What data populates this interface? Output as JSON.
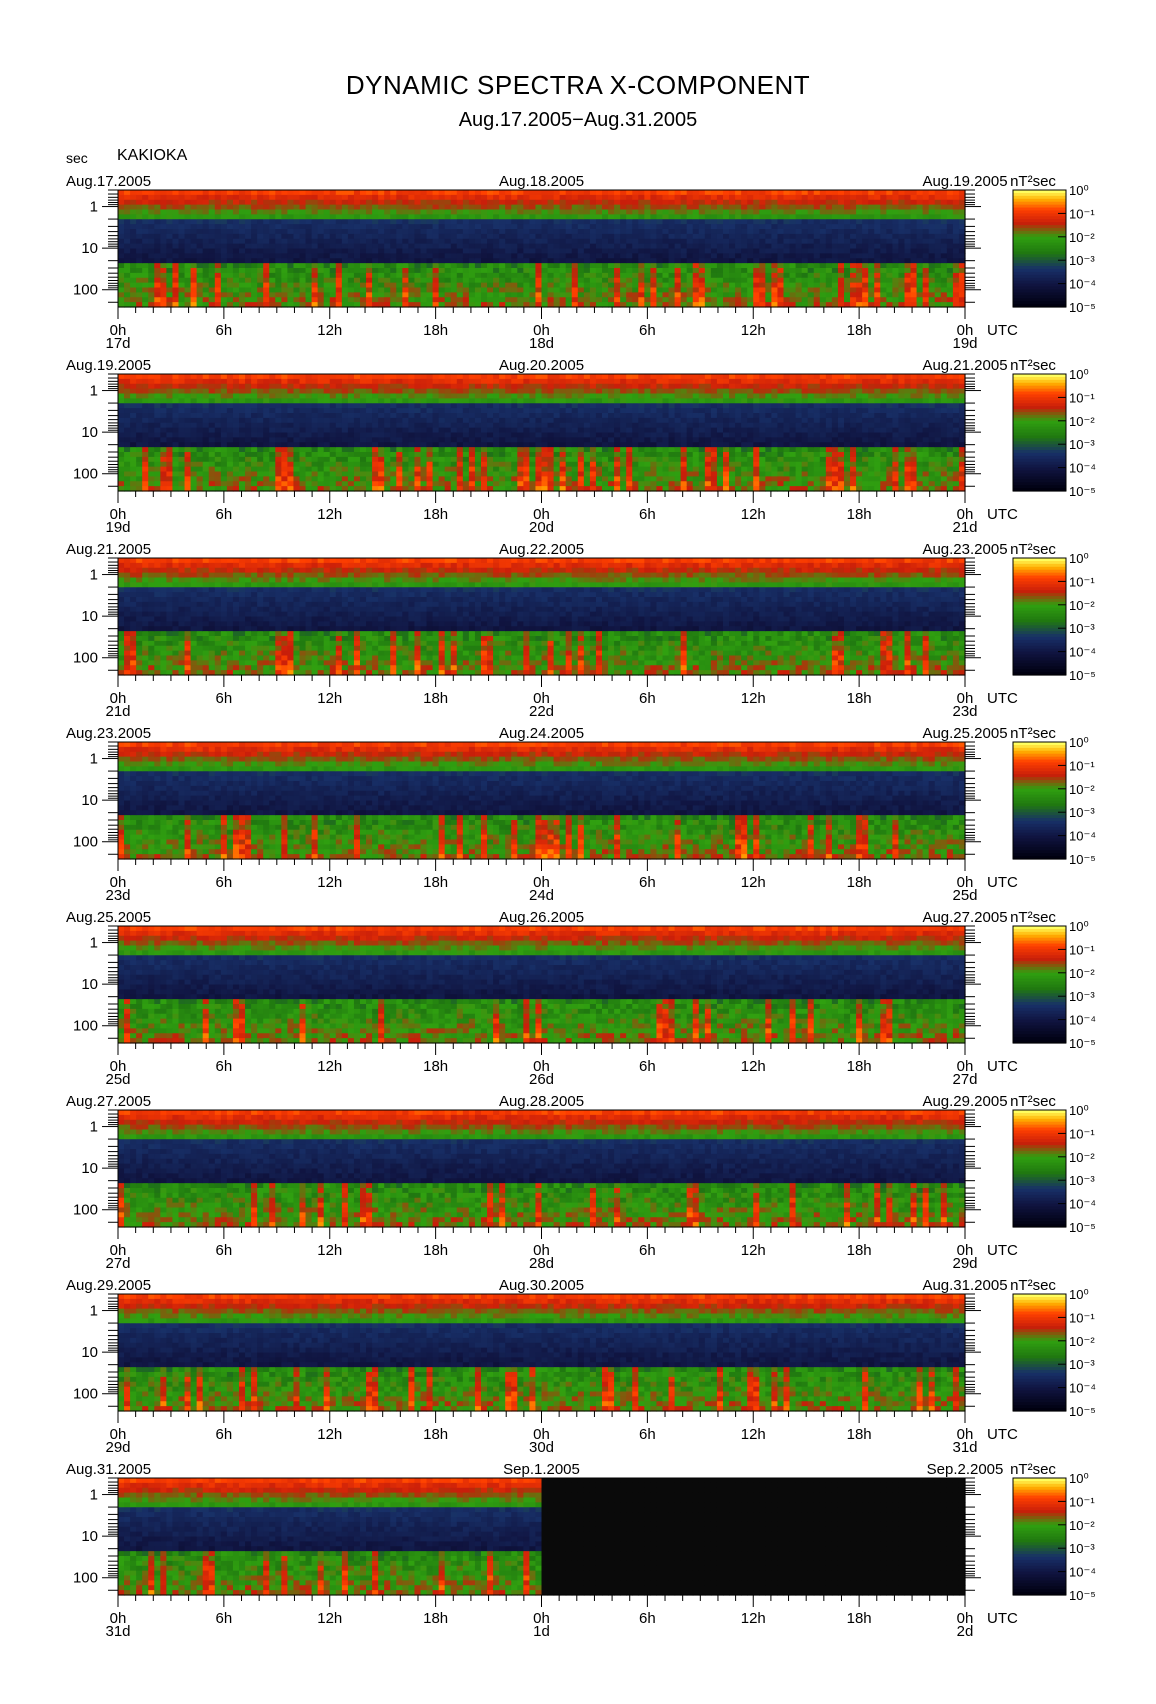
{
  "page": {
    "title": "DYNAMIC SPECTRA X-COMPONENT",
    "subtitle": "Aug.17.2005−Aug.31.2005",
    "y_unit": "sec",
    "station": "KAKIOKA"
  },
  "chart_data": {
    "type": "heatmap",
    "title": "DYNAMIC SPECTRA X-COMPONENT",
    "subtitle": "Aug.17.2005−Aug.31.2005",
    "station": "KAKIOKA",
    "ylabel": "sec",
    "y_scale": "log",
    "y_range_sec": [
      0.4,
      260
    ],
    "y_ticks": [
      "1",
      "10",
      "100"
    ],
    "x_tick_labels": [
      "0h",
      "6h",
      "12h",
      "18h",
      "0h",
      "6h",
      "12h",
      "18h",
      "0h"
    ],
    "x_unit": "UTC",
    "colorbar": {
      "unit": "nT²sec",
      "scale": "log",
      "tick_labels": [
        "10⁰",
        "10⁻¹",
        "10⁻²",
        "10⁻³",
        "10⁻⁴",
        "10⁻⁵"
      ],
      "colors": [
        "#ffff40",
        "#ffb000",
        "#ff4000",
        "#e00000",
        "#a01010",
        "#207800",
        "#30a010",
        "#183068",
        "#101440",
        "#000010"
      ]
    },
    "panels": [
      {
        "date_left": "Aug.17.2005",
        "date_mid": "Aug.18.2005",
        "date_right": "Aug.19.2005",
        "day_labels": [
          "17d",
          "18d",
          "19d"
        ]
      },
      {
        "date_left": "Aug.19.2005",
        "date_mid": "Aug.20.2005",
        "date_right": "Aug.21.2005",
        "day_labels": [
          "19d",
          "20d",
          "21d"
        ]
      },
      {
        "date_left": "Aug.21.2005",
        "date_mid": "Aug.22.2005",
        "date_right": "Aug.23.2005",
        "day_labels": [
          "21d",
          "22d",
          "23d"
        ]
      },
      {
        "date_left": "Aug.23.2005",
        "date_mid": "Aug.24.2005",
        "date_right": "Aug.25.2005",
        "day_labels": [
          "23d",
          "24d",
          "25d"
        ]
      },
      {
        "date_left": "Aug.25.2005",
        "date_mid": "Aug.26.2005",
        "date_right": "Aug.27.2005",
        "day_labels": [
          "25d",
          "26d",
          "27d"
        ]
      },
      {
        "date_left": "Aug.27.2005",
        "date_mid": "Aug.28.2005",
        "date_right": "Aug.29.2005",
        "day_labels": [
          "27d",
          "28d",
          "29d"
        ]
      },
      {
        "date_left": "Aug.29.2005",
        "date_mid": "Aug.30.2005",
        "date_right": "Aug.31.2005",
        "day_labels": [
          "29d",
          "30d",
          "31d"
        ]
      },
      {
        "date_left": "Aug.31.2005",
        "date_mid": "Sep.1.2005",
        "date_right": "Sep.2.2005",
        "day_labels": [
          "31d",
          "1d",
          "2d"
        ],
        "data_coverage_days": 1.0
      }
    ]
  }
}
